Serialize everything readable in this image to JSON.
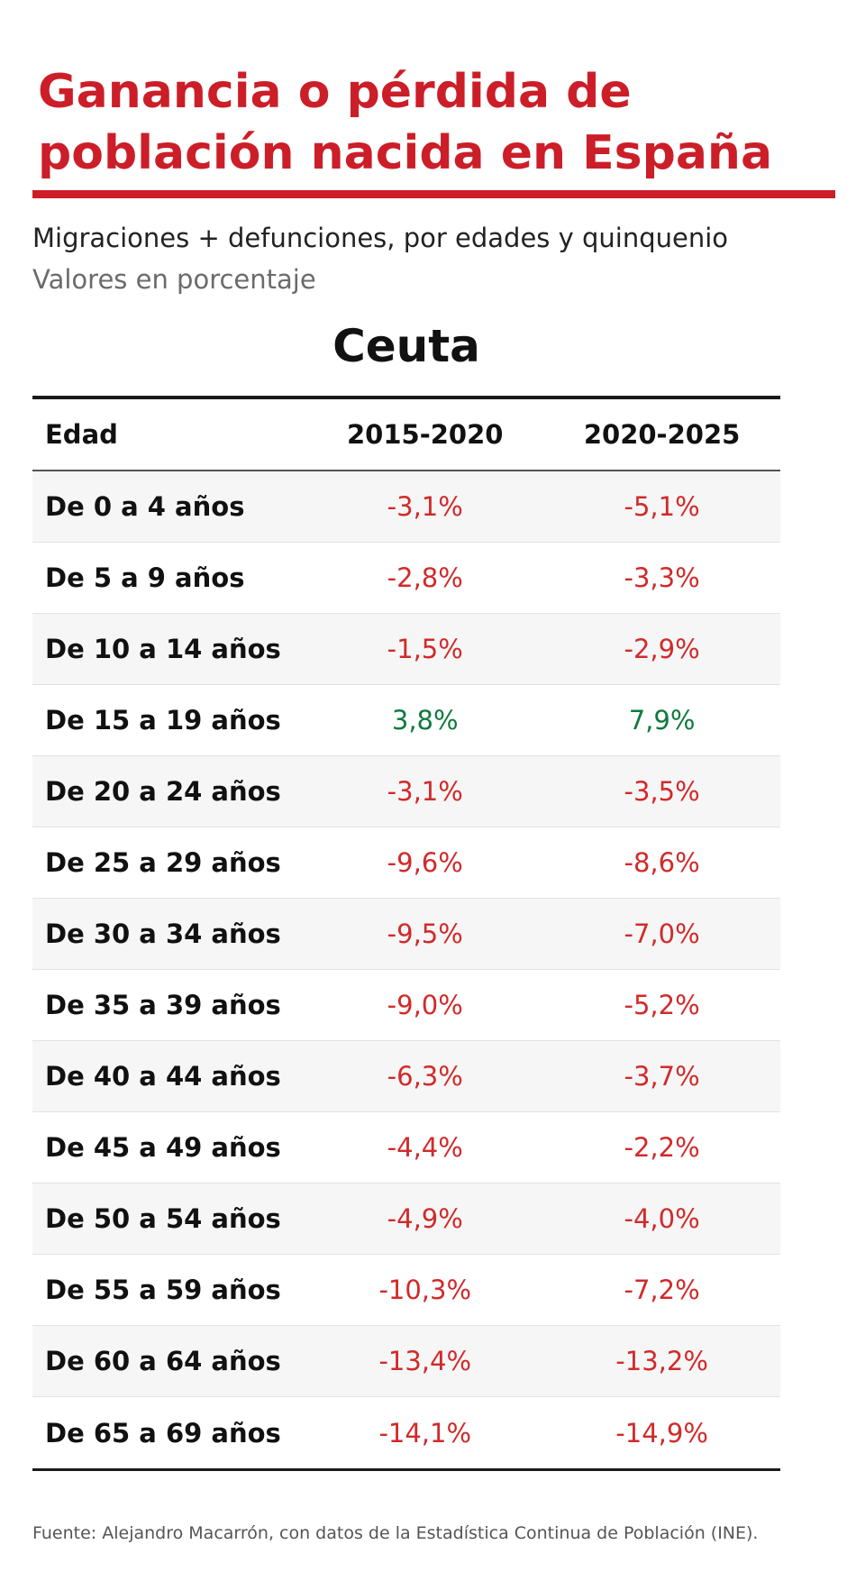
{
  "header": {
    "title": "Ganancia o pérdida de población nacida en España",
    "subtitle": "Migraciones + defunciones, por edades y quinquenio",
    "units": "Valores en porcentaje"
  },
  "colors": {
    "accent": "#cc1e28",
    "negative": "#d12a2a",
    "positive": "#0e7a3e"
  },
  "chart_data": {
    "type": "table",
    "title": "Ceuta",
    "columns": [
      "Edad",
      "2015-2020",
      "2020-2025"
    ],
    "rows": [
      {
        "age": "De 0 a 4 años",
        "v1": "-3,1%",
        "v2": "-5,1%",
        "n1": -3.1,
        "n2": -5.1
      },
      {
        "age": "De 5 a 9 años",
        "v1": "-2,8%",
        "v2": "-3,3%",
        "n1": -2.8,
        "n2": -3.3
      },
      {
        "age": "De 10 a 14 años",
        "v1": "-1,5%",
        "v2": "-2,9%",
        "n1": -1.5,
        "n2": -2.9
      },
      {
        "age": "De 15 a 19 años",
        "v1": "3,8%",
        "v2": "7,9%",
        "n1": 3.8,
        "n2": 7.9
      },
      {
        "age": "De 20 a 24 años",
        "v1": "-3,1%",
        "v2": "-3,5%",
        "n1": -3.1,
        "n2": -3.5
      },
      {
        "age": "De 25 a 29 años",
        "v1": "-9,6%",
        "v2": "-8,6%",
        "n1": -9.6,
        "n2": -8.6
      },
      {
        "age": "De 30 a 34 años",
        "v1": "-9,5%",
        "v2": "-7,0%",
        "n1": -9.5,
        "n2": -7.0
      },
      {
        "age": "De 35 a 39 años",
        "v1": "-9,0%",
        "v2": "-5,2%",
        "n1": -9.0,
        "n2": -5.2
      },
      {
        "age": "De 40 a 44 años",
        "v1": "-6,3%",
        "v2": "-3,7%",
        "n1": -6.3,
        "n2": -3.7
      },
      {
        "age": "De 45 a 49 años",
        "v1": "-4,4%",
        "v2": "-2,2%",
        "n1": -4.4,
        "n2": -2.2
      },
      {
        "age": "De 50 a 54 años",
        "v1": "-4,9%",
        "v2": "-4,0%",
        "n1": -4.9,
        "n2": -4.0
      },
      {
        "age": "De 55 a 59 años",
        "v1": "-10,3%",
        "v2": "-7,2%",
        "n1": -10.3,
        "n2": -7.2
      },
      {
        "age": "De 60 a 64 años",
        "v1": "-13,4%",
        "v2": "-13,2%",
        "n1": -13.4,
        "n2": -13.2
      },
      {
        "age": "De 65 a 69 años",
        "v1": "-14,1%",
        "v2": "-14,9%",
        "n1": -14.1,
        "n2": -14.9
      }
    ]
  },
  "footer": {
    "source": "Fuente: Alejandro Macarrón, con datos de la Estadística Continua de Población (INE)."
  }
}
